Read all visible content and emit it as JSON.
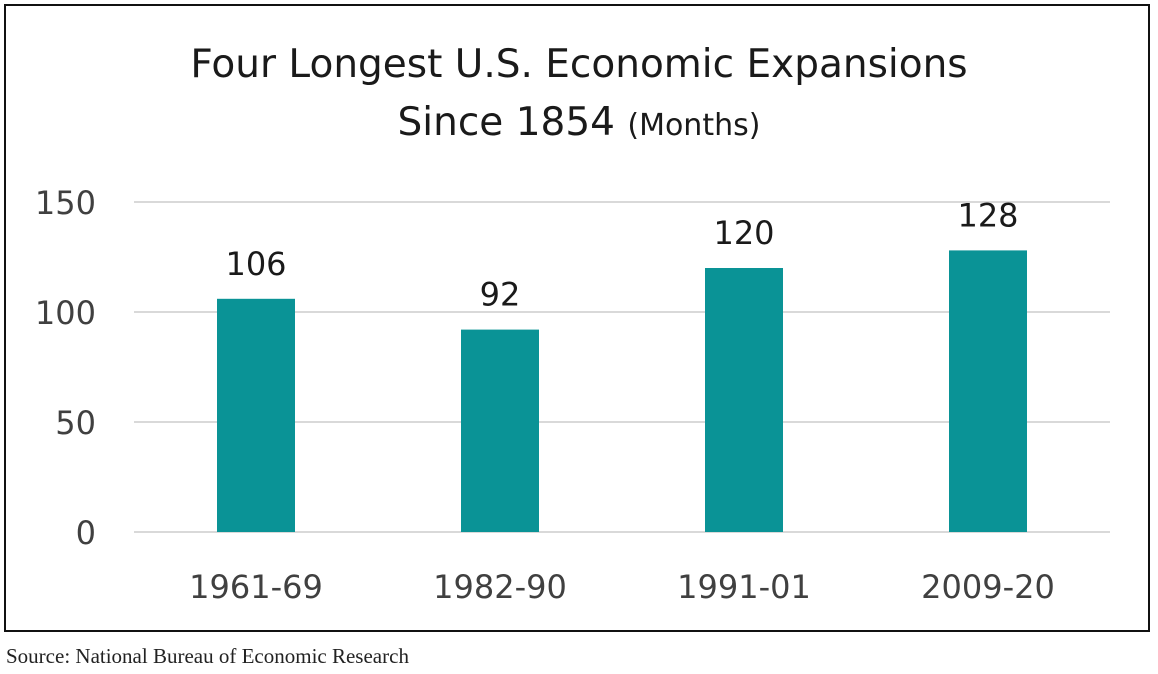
{
  "chart_data": {
    "type": "bar",
    "title_line1": "Four Longest U.S. Economic Expansions",
    "title_line2": "Since 1854",
    "title_unit": "(Months)",
    "categories": [
      "1961-69",
      "1982-90",
      "1991-01",
      "2009-20"
    ],
    "values": [
      106,
      92,
      120,
      128
    ],
    "data_labels": [
      "106",
      "92",
      "120",
      "128"
    ],
    "ylim": [
      0,
      150
    ],
    "yticks": [
      0,
      50,
      100,
      150
    ],
    "ytick_labels": [
      "0",
      "50",
      "100",
      "150"
    ],
    "grid": true,
    "legend": "none",
    "bar_color": "#0a9396",
    "grid_color": "#d9d9d9",
    "text_color": "#404040"
  },
  "source": "Source: National Bureau of Economic Research"
}
